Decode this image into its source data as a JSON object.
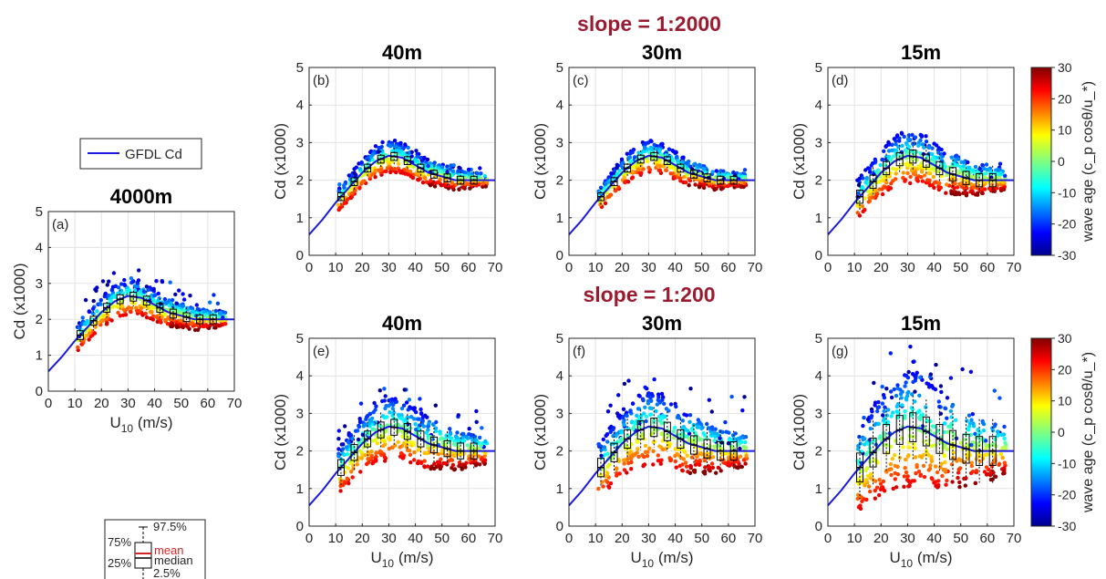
{
  "legend": {
    "line_label": "GFDL Cd",
    "line_color": "#1a1ae0"
  },
  "slope_titles": [
    "slope = 1:2000",
    "slope = 1:200"
  ],
  "colorbar": {
    "label": "wave age (c_p cosθ/u_*)",
    "ticks": [
      30,
      20,
      10,
      0,
      -10,
      -20,
      -30
    ],
    "colormap": "jet"
  },
  "boxplot_key": {
    "labels": [
      "97.5%",
      "75%",
      "mean",
      "median",
      "25%",
      "2.5%"
    ],
    "mean_color": "#d62728"
  },
  "chart_data": [
    {
      "id": "a",
      "type": "scatter",
      "panel_label": "(a)",
      "title": "4000m",
      "xlabel": "U10 (m/s)",
      "ylabel": "Cd (x1000)",
      "xlim": [
        0,
        70
      ],
      "ylim": [
        0,
        5
      ],
      "xticks": [
        0,
        10,
        20,
        30,
        40,
        50,
        60,
        70
      ],
      "yticks": [
        0,
        1,
        2,
        3,
        4,
        5
      ],
      "grid": true,
      "spread": 0.35,
      "outlier_height": 0.9,
      "box_x": [
        12,
        17,
        22,
        27,
        32,
        37,
        42,
        47,
        52,
        57,
        62
      ]
    },
    {
      "id": "b",
      "type": "scatter",
      "panel_label": "(b)",
      "title": "40m",
      "xlabel": "",
      "ylabel": "Cd (x1000)",
      "xlim": [
        0,
        70
      ],
      "ylim": [
        0,
        5
      ],
      "xticks": [
        0,
        10,
        20,
        30,
        40,
        50,
        60,
        70
      ],
      "yticks": [
        0,
        1,
        2,
        3,
        4,
        5
      ],
      "grid": true,
      "spread": 0.3,
      "outlier_height": 0.4,
      "box_x": [
        12,
        17,
        22,
        27,
        32,
        37,
        42,
        47,
        52,
        57,
        62
      ]
    },
    {
      "id": "c",
      "type": "scatter",
      "panel_label": "(c)",
      "title": "30m",
      "xlabel": "",
      "ylabel": "Cd (x1000)",
      "xlim": [
        0,
        70
      ],
      "ylim": [
        0,
        5
      ],
      "xticks": [
        0,
        10,
        20,
        30,
        40,
        50,
        60,
        70
      ],
      "yticks": [
        0,
        1,
        2,
        3,
        4,
        5
      ],
      "grid": true,
      "spread": 0.3,
      "outlier_height": 0.3,
      "box_x": [
        12,
        17,
        22,
        27,
        32,
        37,
        42,
        47,
        52,
        57,
        62
      ]
    },
    {
      "id": "d",
      "type": "scatter",
      "panel_label": "(d)",
      "title": "15m",
      "xlabel": "",
      "ylabel": "Cd (x1000)",
      "xlim": [
        0,
        70
      ],
      "ylim": [
        0,
        5
      ],
      "xticks": [
        0,
        10,
        20,
        30,
        40,
        50,
        60,
        70
      ],
      "yticks": [
        0,
        1,
        2,
        3,
        4,
        5
      ],
      "grid": true,
      "spread": 0.5,
      "outlier_height": 0.5,
      "box_x": [
        12,
        17,
        22,
        27,
        32,
        37,
        42,
        47,
        52,
        57,
        62
      ]
    },
    {
      "id": "e",
      "type": "scatter",
      "panel_label": "(e)",
      "title": "40m",
      "xlabel": "U10 (m/s)",
      "ylabel": "Cd (x1000)",
      "xlim": [
        0,
        70
      ],
      "ylim": [
        0,
        5
      ],
      "xticks": [
        0,
        10,
        20,
        30,
        40,
        50,
        60,
        70
      ],
      "yticks": [
        0,
        1,
        2,
        3,
        4,
        5
      ],
      "grid": true,
      "spread": 0.6,
      "outlier_height": 1.1,
      "box_x": [
        12,
        17,
        22,
        27,
        32,
        37,
        42,
        47,
        52,
        57,
        62
      ]
    },
    {
      "id": "f",
      "type": "scatter",
      "panel_label": "(f)",
      "title": "30m",
      "xlabel": "U10 (m/s)",
      "ylabel": "Cd (x1000)",
      "xlim": [
        0,
        70
      ],
      "ylim": [
        0,
        5
      ],
      "xticks": [
        0,
        10,
        20,
        30,
        40,
        50,
        60,
        70
      ],
      "yticks": [
        0,
        1,
        2,
        3,
        4,
        5
      ],
      "grid": true,
      "spread": 0.7,
      "outlier_height": 1.6,
      "box_x": [
        12,
        17,
        22,
        27,
        32,
        37,
        42,
        47,
        52,
        57,
        62
      ]
    },
    {
      "id": "g",
      "type": "scatter",
      "panel_label": "(g)",
      "title": "15m",
      "xlabel": "U10 (m/s)",
      "ylabel": "Cd (x1000)",
      "xlim": [
        0,
        70
      ],
      "ylim": [
        0,
        5
      ],
      "xticks": [
        0,
        10,
        20,
        30,
        40,
        50,
        60,
        70
      ],
      "yticks": [
        0,
        1,
        2,
        3,
        4,
        5
      ],
      "grid": true,
      "spread": 1.1,
      "outlier_height": 2.2,
      "box_x": [
        12,
        17,
        22,
        27,
        32,
        37,
        42,
        47,
        52,
        57,
        62
      ]
    }
  ],
  "gfdl_curve": {
    "x": [
      0,
      5,
      10,
      15,
      20,
      25,
      30,
      35,
      40,
      45,
      50,
      55,
      60,
      65,
      70
    ],
    "y": [
      0.55,
      0.95,
      1.4,
      1.8,
      2.2,
      2.5,
      2.65,
      2.6,
      2.4,
      2.2,
      2.1,
      2.0,
      2.0,
      2.0,
      2.0
    ]
  }
}
